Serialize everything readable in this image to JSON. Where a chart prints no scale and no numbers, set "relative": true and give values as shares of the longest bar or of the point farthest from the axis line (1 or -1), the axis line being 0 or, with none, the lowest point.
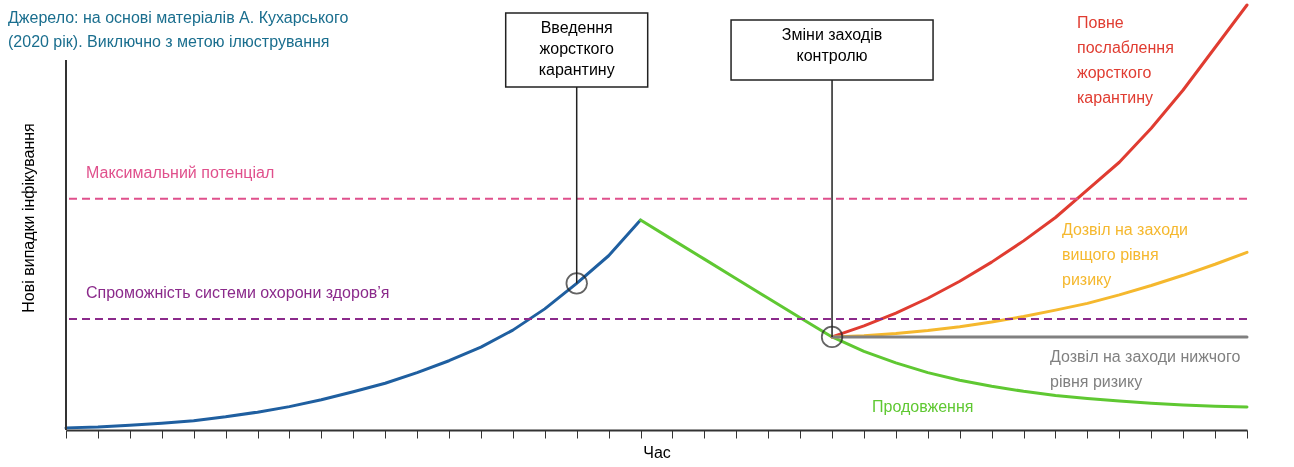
{
  "chart_data": {
    "type": "line",
    "relative": true,
    "xlabel": "Час",
    "ylabel": "Нові випадки інфікування",
    "annotations": [
      "Джерело: на основі матеріалів А. Кухарського (2020 рік). Виключно з метою ілюстрування",
      "Введення жорсткого карантину",
      "Зміни заходів контролю"
    ],
    "categories": [
      null,
      null,
      null,
      null,
      null,
      null,
      null,
      null,
      null,
      null,
      null,
      null,
      null,
      null,
      null,
      null,
      null,
      null,
      null,
      null,
      null,
      null,
      null,
      null,
      null,
      null,
      null,
      null,
      null,
      null,
      null,
      null,
      null,
      null,
      null,
      null,
      null,
      null
    ],
    "tick_labels": false,
    "grid": false,
    "legend": false,
    "marker": "none",
    "line_style": "solid",
    "series": [
      {
        "color": "#1f5fa0",
        "values": [
          0.005,
          0.007,
          0.011,
          0.016,
          0.022,
          0.031,
          0.042,
          0.055,
          0.071,
          0.09,
          0.11,
          0.135,
          0.163,
          0.195,
          0.235,
          0.285,
          0.345,
          0.41,
          0.494,
          null,
          null,
          null,
          null,
          null,
          null,
          null,
          null,
          null,
          null,
          null,
          null,
          null,
          null,
          null,
          null,
          null,
          null,
          null
        ]
      },
      {
        "name": "Продовження",
        "color": "#5fc832",
        "values": [
          null,
          null,
          null,
          null,
          null,
          null,
          null,
          null,
          null,
          null,
          null,
          null,
          null,
          null,
          null,
          null,
          null,
          null,
          0.494,
          0.448,
          0.402,
          0.356,
          0.31,
          0.264,
          0.219,
          0.185,
          0.158,
          0.135,
          0.117,
          0.103,
          0.091,
          0.081,
          0.074,
          0.068,
          0.063,
          0.059,
          0.056,
          0.054
        ]
      },
      {
        "name": "Повне послаблення жорсткого карантину",
        "color": "#e03c31",
        "values": [
          null,
          null,
          null,
          null,
          null,
          null,
          null,
          null,
          null,
          null,
          null,
          null,
          null,
          null,
          null,
          null,
          null,
          null,
          null,
          null,
          null,
          null,
          null,
          null,
          0.219,
          0.245,
          0.275,
          0.31,
          0.35,
          0.395,
          0.445,
          0.5,
          0.565,
          0.63,
          0.71,
          0.8,
          0.9,
          1.0
        ]
      },
      {
        "name": "Дозвіл на заходи вищого рівня ризику",
        "color": "#f5b82e",
        "values": [
          null,
          null,
          null,
          null,
          null,
          null,
          null,
          null,
          null,
          null,
          null,
          null,
          null,
          null,
          null,
          null,
          null,
          null,
          null,
          null,
          null,
          null,
          null,
          null,
          0.219,
          0.222,
          0.227,
          0.234,
          0.243,
          0.254,
          0.267,
          0.282,
          0.298,
          0.318,
          0.34,
          0.364,
          0.39,
          0.418
        ]
      },
      {
        "name": "Дозвіл на заходи нижчого рівня ризику",
        "color": "#808080",
        "values": [
          null,
          null,
          null,
          null,
          null,
          null,
          null,
          null,
          null,
          null,
          null,
          null,
          null,
          null,
          null,
          null,
          null,
          null,
          null,
          null,
          null,
          null,
          null,
          null,
          0.219,
          0.219,
          0.219,
          0.219,
          0.219,
          0.219,
          0.219,
          0.219,
          0.219,
          0.219,
          0.219,
          0.219,
          0.219,
          0.219
        ]
      }
    ],
    "ref_lines": [
      {
        "axis": "y",
        "value": 0.544,
        "label": "Максимальний потенціал",
        "color": "#e0508c",
        "line_style": "dashed"
      },
      {
        "axis": "y",
        "value": 0.261,
        "label": "Спроможність системи охорони здоров’я",
        "color": "#8b2a8b",
        "line_style": "dashed"
      }
    ]
  }
}
